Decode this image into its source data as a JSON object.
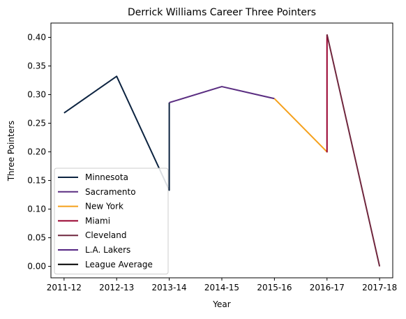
{
  "chart_data": {
    "type": "line",
    "title": "Derrick Williams  Career Three Pointers",
    "xlabel": "Year",
    "ylabel": "Three Pointers",
    "categories": [
      "2011-12",
      "2012-13",
      "2013-14",
      "2014-15",
      "2015-16",
      "2016-17",
      "2017-18"
    ],
    "ylim": [
      -0.02,
      0.425
    ],
    "yticks": [
      0.0,
      0.05,
      0.1,
      0.15,
      0.2,
      0.25,
      0.3,
      0.35,
      0.4
    ],
    "grid": false,
    "legend_position": "lower-left",
    "series": [
      {
        "name": "Minnesota",
        "color": "#0c2340",
        "points": [
          {
            "x": "2011-12",
            "y": 0.268
          },
          {
            "x": "2012-13",
            "y": 0.332
          },
          {
            "x": "2013-14",
            "y": 0.133
          },
          {
            "x": "2013-14",
            "y": 0.286
          }
        ]
      },
      {
        "name": "Sacramento",
        "color": "#5a2d81",
        "points": [
          {
            "x": "2013-14",
            "y": 0.286
          },
          {
            "x": "2014-15",
            "y": 0.314
          },
          {
            "x": "2015-16",
            "y": 0.293
          }
        ]
      },
      {
        "name": "New York",
        "color": "#f5a01a",
        "points": [
          {
            "x": "2015-16",
            "y": 0.293
          },
          {
            "x": "2016-17",
            "y": 0.2
          }
        ]
      },
      {
        "name": "Miami",
        "color": "#98002e",
        "points": [
          {
            "x": "2016-17",
            "y": 0.199
          },
          {
            "x": "2016-17",
            "y": 0.405
          }
        ]
      },
      {
        "name": "Cleveland",
        "color": "#6f263d",
        "points": [
          {
            "x": "2016-17",
            "y": 0.405
          },
          {
            "x": "2017-18",
            "y": 0.0
          }
        ]
      },
      {
        "name": "L.A. Lakers",
        "color": "#552583",
        "points": []
      },
      {
        "name": "League Average",
        "color": "#000000",
        "points": []
      }
    ]
  }
}
